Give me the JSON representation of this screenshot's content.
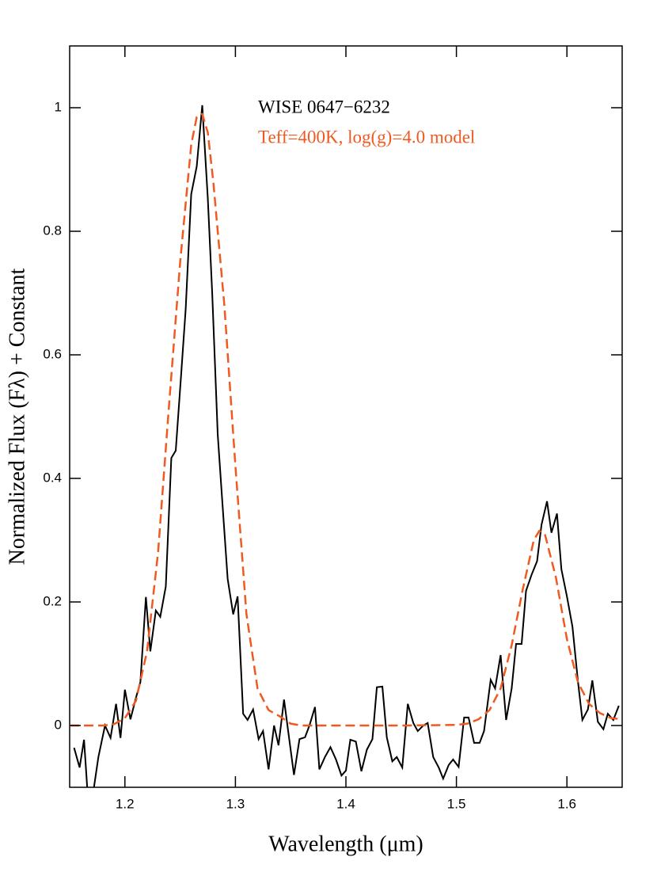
{
  "chart_data": {
    "type": "line",
    "xlabel": "Wavelength (μm)",
    "ylabel": "Normalized Flux (Fλ) + Constant",
    "xlim": [
      1.15,
      1.65
    ],
    "xticks": [
      1.2,
      1.3,
      1.4,
      1.5,
      1.6
    ],
    "ylim": [
      -0.1,
      1.1
    ],
    "yticks": [
      0,
      0.2,
      0.4,
      0.6,
      0.8,
      1
    ],
    "series": [
      {
        "name": "WISE 0647−6232",
        "color": "#000000",
        "dashed": false,
        "x": [
          1.154,
          1.159,
          1.163,
          1.167,
          1.172,
          1.176,
          1.182,
          1.187,
          1.192,
          1.196,
          1.2,
          1.205,
          1.21,
          1.214,
          1.219,
          1.223,
          1.228,
          1.232,
          1.237,
          1.242,
          1.246,
          1.251,
          1.255,
          1.26,
          1.265,
          1.27,
          1.275,
          1.279,
          1.284,
          1.288,
          1.293,
          1.298,
          1.302,
          1.307,
          1.311,
          1.316,
          1.321,
          1.325,
          1.33,
          1.335,
          1.339,
          1.344,
          1.349,
          1.353,
          1.358,
          1.363,
          1.367,
          1.372,
          1.376,
          1.381,
          1.386,
          1.391,
          1.396,
          1.4,
          1.404,
          1.409,
          1.414,
          1.419,
          1.424,
          1.428,
          1.433,
          1.437,
          1.442,
          1.446,
          1.451,
          1.456,
          1.461,
          1.465,
          1.47,
          1.474,
          1.479,
          1.484,
          1.488,
          1.493,
          1.497,
          1.502,
          1.507,
          1.511,
          1.516,
          1.521,
          1.525,
          1.531,
          1.535,
          1.54,
          1.545,
          1.55,
          1.554,
          1.559,
          1.563,
          1.568,
          1.573,
          1.577,
          1.582,
          1.586,
          1.591,
          1.595,
          1.6,
          1.605,
          1.61,
          1.614,
          1.619,
          1.623,
          1.628,
          1.633,
          1.637,
          1.642,
          1.647
        ],
        "values": [
          -0.036,
          -0.068,
          -0.023,
          -0.13,
          -0.1,
          -0.051,
          0.0,
          -0.02,
          0.035,
          -0.02,
          0.058,
          0.01,
          0.045,
          0.07,
          0.208,
          0.12,
          0.186,
          0.176,
          0.225,
          0.433,
          0.445,
          0.571,
          0.674,
          0.86,
          0.905,
          1.004,
          0.854,
          0.7,
          0.471,
          0.366,
          0.237,
          0.18,
          0.209,
          0.019,
          0.009,
          0.026,
          -0.022,
          -0.009,
          -0.071,
          0.0,
          -0.032,
          0.042,
          -0.026,
          -0.08,
          -0.022,
          -0.019,
          0.0,
          0.03,
          -0.071,
          -0.051,
          -0.035,
          -0.055,
          -0.081,
          -0.073,
          -0.023,
          -0.026,
          -0.074,
          -0.039,
          -0.022,
          0.062,
          0.063,
          -0.019,
          -0.058,
          -0.051,
          -0.068,
          0.035,
          0.004,
          -0.009,
          0.0,
          0.004,
          -0.051,
          -0.068,
          -0.086,
          -0.064,
          -0.055,
          -0.067,
          0.013,
          0.013,
          -0.028,
          -0.028,
          -0.009,
          0.074,
          0.06,
          0.114,
          0.009,
          0.06,
          0.132,
          0.132,
          0.218,
          0.244,
          0.266,
          0.325,
          0.363,
          0.312,
          0.343,
          0.253,
          0.209,
          0.16,
          0.071,
          0.009,
          0.026,
          0.073,
          0.006,
          -0.006,
          0.019,
          0.009,
          0.032
        ]
      },
      {
        "name": "Teff=400K, log(g)=4.0 model",
        "color": "#f05a22",
        "dashed": true,
        "x": [
          1.15,
          1.16,
          1.17,
          1.18,
          1.19,
          1.2,
          1.21,
          1.22,
          1.23,
          1.24,
          1.25,
          1.26,
          1.265,
          1.27,
          1.275,
          1.28,
          1.29,
          1.3,
          1.31,
          1.32,
          1.33,
          1.34,
          1.35,
          1.36,
          1.4,
          1.45,
          1.5,
          1.51,
          1.52,
          1.53,
          1.54,
          1.55,
          1.56,
          1.57,
          1.575,
          1.58,
          1.59,
          1.6,
          1.61,
          1.62,
          1.63,
          1.64,
          1.65
        ],
        "values": [
          0,
          0,
          0,
          0,
          0.002,
          0.012,
          0.04,
          0.12,
          0.28,
          0.52,
          0.75,
          0.94,
          0.985,
          0.99,
          0.96,
          0.88,
          0.68,
          0.42,
          0.18,
          0.06,
          0.025,
          0.015,
          0.003,
          0,
          0,
          0,
          0.001,
          0.003,
          0.01,
          0.025,
          0.06,
          0.13,
          0.22,
          0.3,
          0.315,
          0.31,
          0.24,
          0.14,
          0.07,
          0.035,
          0.02,
          0.012,
          0.01
        ]
      }
    ]
  }
}
